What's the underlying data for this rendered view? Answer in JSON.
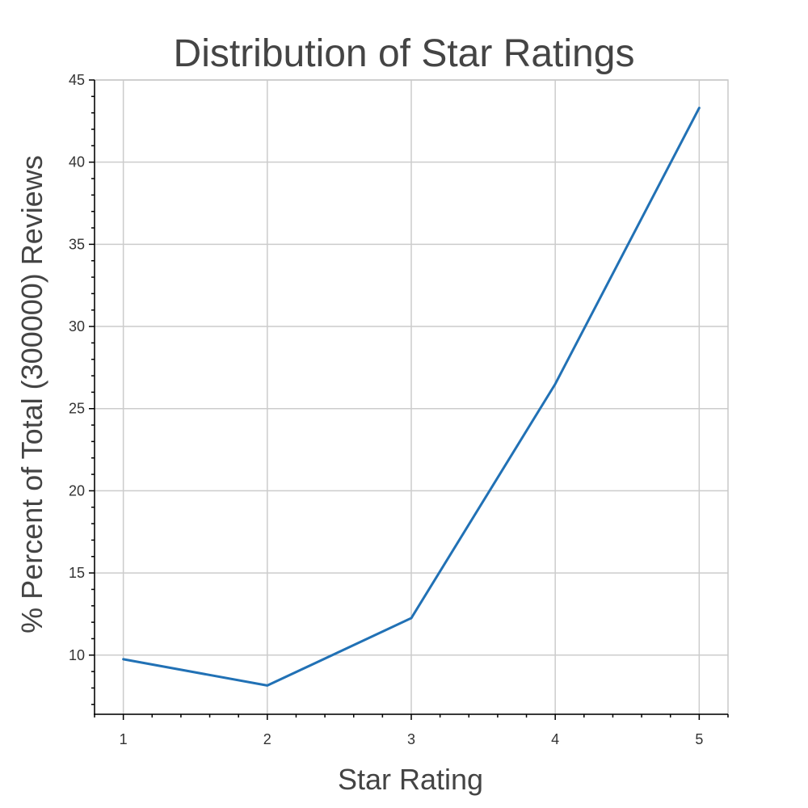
{
  "chart_data": {
    "type": "line",
    "title": "Distribution of Star Ratings",
    "xlabel": "Star Rating",
    "ylabel": "% Percent of Total (300000) Reviews",
    "x": [
      1,
      2,
      3,
      4,
      5
    ],
    "series": [
      {
        "values": [
          9.75,
          8.15,
          12.25,
          26.5,
          43.3
        ],
        "color": "#2171b5"
      }
    ],
    "xlim": [
      0.8,
      5.2
    ],
    "ylim": [
      6.4,
      45
    ],
    "xticks": [
      1,
      2,
      3,
      4,
      5
    ],
    "yticks": [
      10,
      15,
      20,
      25,
      30,
      35,
      40,
      45
    ],
    "grid": true,
    "colors": {
      "grid": "#cccccc",
      "frame": "#c8c8c8",
      "axis": "#000000",
      "text": "#444444"
    }
  }
}
